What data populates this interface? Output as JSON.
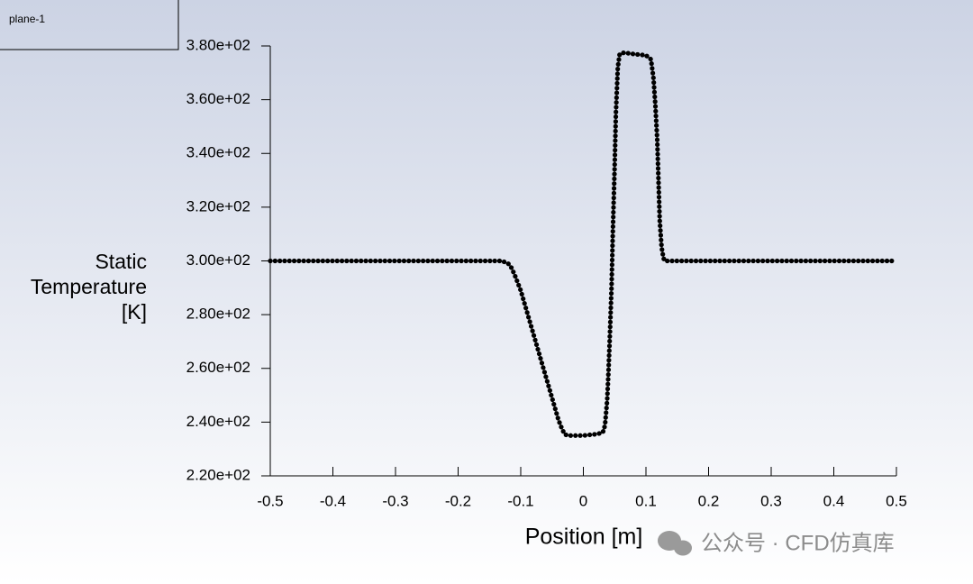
{
  "chart_data": {
    "type": "line",
    "y_label": [
      "Static",
      "Temperature",
      "[K]"
    ],
    "x_label": "Position [m]",
    "watermark": "公众号 · CFD仿真库",
    "x": [
      -0.5,
      -0.4,
      -0.3,
      -0.2,
      -0.15,
      -0.13,
      -0.125,
      -0.12,
      -0.115,
      -0.11,
      -0.1,
      -0.09,
      -0.08,
      -0.07,
      -0.06,
      -0.05,
      -0.04,
      -0.035,
      -0.03,
      -0.025,
      -0.02,
      0,
      0.02,
      0.03,
      0.033,
      0.035,
      0.038,
      0.04,
      0.042,
      0.045,
      0.047,
      0.05,
      0.052,
      0.055,
      0.058,
      0.065,
      0.08,
      0.1,
      0.108,
      0.112,
      0.115,
      0.118,
      0.12,
      0.122,
      0.125,
      0.128,
      0.13,
      0.2,
      0.3,
      0.4,
      0.5
    ],
    "series": [
      {
        "name": "plane-1",
        "color": "#000000",
        "values": [
          300,
          300,
          300,
          300,
          300,
          300,
          299.5,
          299,
          297.5,
          295,
          289,
          281,
          273,
          265,
          257,
          249,
          241,
          238,
          235.5,
          235,
          235,
          235,
          235.5,
          236,
          237,
          240,
          248,
          258,
          270,
          290,
          310,
          335,
          355,
          372,
          377,
          377.5,
          377,
          376.5,
          375,
          368,
          358,
          345,
          330,
          315,
          305,
          301,
          300,
          300,
          300,
          300,
          300
        ]
      }
    ],
    "xlim": [
      -0.5,
      0.5
    ],
    "xticks": [
      -0.5,
      -0.4,
      -0.3,
      -0.2,
      -0.1,
      0,
      0.1,
      0.2,
      0.3,
      0.4,
      0.5
    ],
    "ylim": [
      220,
      380
    ],
    "yticks": [
      {
        "value": 220,
        "label": "2.20e+02"
      },
      {
        "value": 240,
        "label": "2.40e+02"
      },
      {
        "value": 260,
        "label": "2.60e+02"
      },
      {
        "value": 280,
        "label": "2.80e+02"
      },
      {
        "value": 300,
        "label": "3.00e+02"
      },
      {
        "value": 320,
        "label": "3.20e+02"
      },
      {
        "value": 340,
        "label": "3.40e+02"
      },
      {
        "value": 360,
        "label": "3.60e+02"
      },
      {
        "value": 380,
        "label": "3.80e+02"
      }
    ],
    "grid": false,
    "legend": "top-left"
  }
}
